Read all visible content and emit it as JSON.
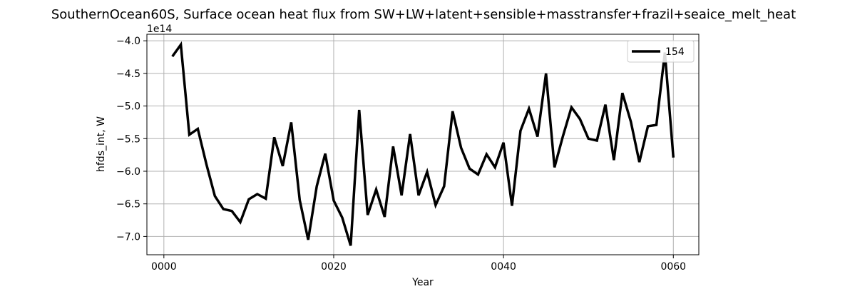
{
  "chart_data": {
    "type": "line",
    "title": "SouthernOcean60S, Surface ocean heat flux from SW+LW+latent+sensible+masstransfer+frazil+seaice_melt_heat",
    "xlabel": "Year",
    "ylabel": "hfds_int, W",
    "offset_text": "1e14",
    "xlim": [
      -2,
      63
    ],
    "ylim": [
      -7.28,
      -3.9
    ],
    "x_ticks": [
      0,
      20,
      40,
      60
    ],
    "x_tick_labels": [
      "0000",
      "0020",
      "0040",
      "0060"
    ],
    "y_ticks": [
      -4.0,
      -4.5,
      -5.0,
      -5.5,
      -6.0,
      -6.5,
      -7.0
    ],
    "y_tick_labels": [
      "−4.0",
      "−4.5",
      "−5.0",
      "−5.5",
      "−6.0",
      "−6.5",
      "−7.0"
    ],
    "grid": true,
    "legend_position": "top-right",
    "series": [
      {
        "name": "154",
        "color": "#000000",
        "x": [
          1,
          2,
          3,
          4,
          5,
          6,
          7,
          8,
          9,
          10,
          11,
          12,
          13,
          14,
          15,
          16,
          17,
          18,
          19,
          20,
          21,
          22,
          23,
          24,
          25,
          26,
          27,
          28,
          29,
          30,
          31,
          32,
          33,
          34,
          35,
          36,
          37,
          38,
          39,
          40,
          41,
          42,
          43,
          44,
          45,
          46,
          47,
          48,
          49,
          50,
          51,
          52,
          53,
          54,
          55,
          56,
          57,
          58,
          59,
          60
        ],
        "y": [
          -4.24,
          -4.06,
          -5.44,
          -5.35,
          -5.89,
          -6.38,
          -6.58,
          -6.61,
          -6.78,
          -6.43,
          -6.35,
          -6.42,
          -5.48,
          -5.92,
          -5.25,
          -6.44,
          -7.05,
          -6.23,
          -5.73,
          -6.45,
          -6.71,
          -7.14,
          -5.06,
          -6.67,
          -6.28,
          -6.7,
          -5.62,
          -6.37,
          -5.43,
          -6.37,
          -6.01,
          -6.52,
          -6.23,
          -5.08,
          -5.64,
          -5.96,
          -6.05,
          -5.74,
          -5.94,
          -5.56,
          -6.53,
          -5.38,
          -5.04,
          -5.47,
          -4.5,
          -5.94,
          -5.46,
          -5.02,
          -5.2,
          -5.5,
          -5.53,
          -4.98,
          -5.83,
          -4.8,
          -5.24,
          -5.86,
          -5.31,
          -5.29,
          -4.18,
          -5.79
        ]
      }
    ]
  }
}
